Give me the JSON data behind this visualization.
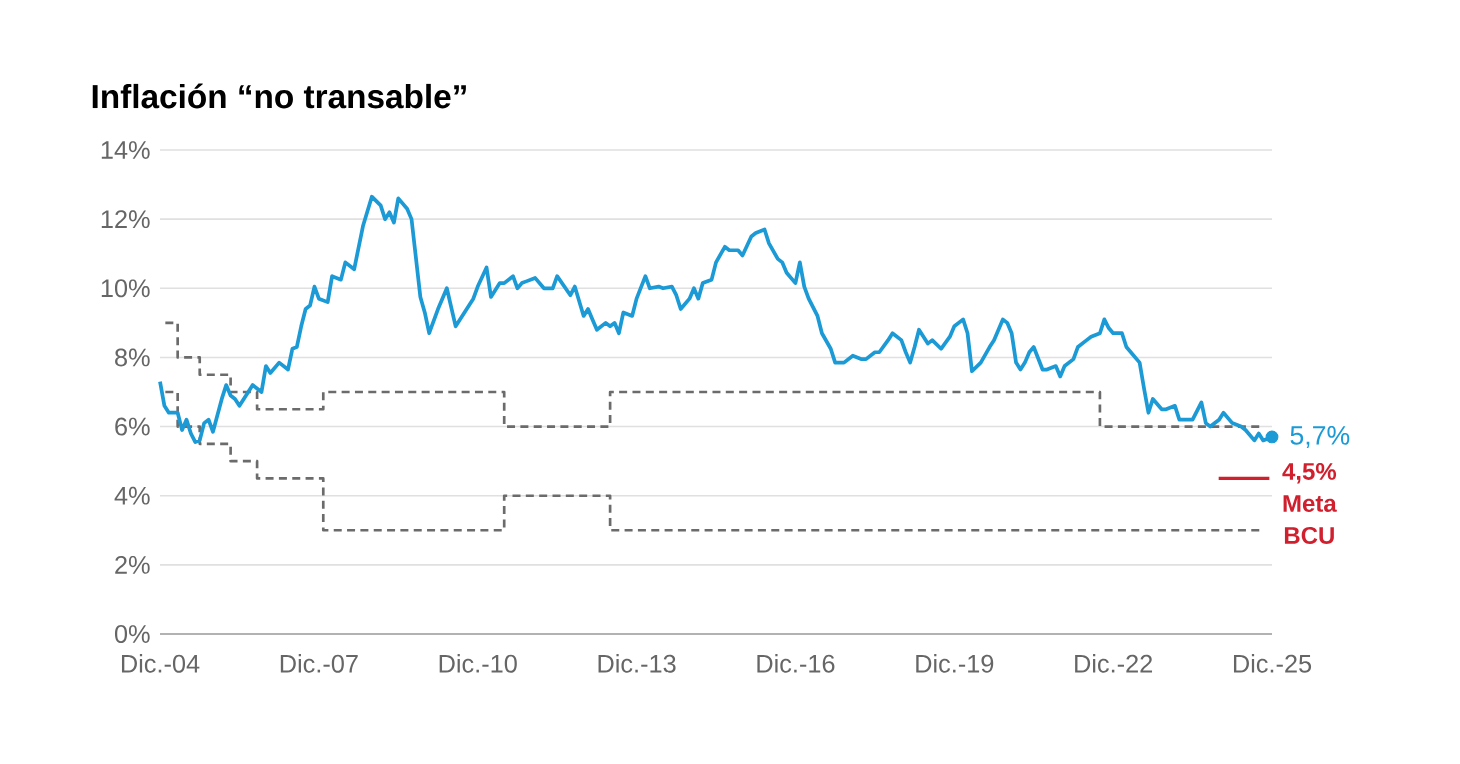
{
  "chart_data": {
    "type": "line",
    "title": "Inflación “no transable”",
    "xlim": [
      "2004-12",
      "2025-12"
    ],
    "xticks": [
      {
        "value": "2004-12",
        "label": "Dic.-04"
      },
      {
        "value": "2007-12",
        "label": "Dic.-07"
      },
      {
        "value": "2010-12",
        "label": "Dic.-10"
      },
      {
        "value": "2013-12",
        "label": "Dic.-13"
      },
      {
        "value": "2016-12",
        "label": "Dic.-16"
      },
      {
        "value": "2019-12",
        "label": "Dic.-19"
      },
      {
        "value": "2022-12",
        "label": "Dic.-22"
      },
      {
        "value": "2025-12",
        "label": "Dic.-25"
      }
    ],
    "ylim": [
      0,
      14
    ],
    "yticks": [
      {
        "value": 0,
        "label": "0%"
      },
      {
        "value": 2,
        "label": "2%"
      },
      {
        "value": 4,
        "label": "4%"
      },
      {
        "value": 6,
        "label": "6%"
      },
      {
        "value": 8,
        "label": "8%"
      },
      {
        "value": 10,
        "label": "10%"
      },
      {
        "value": 12,
        "label": "12%"
      },
      {
        "value": 14,
        "label": "14%"
      }
    ],
    "grid": "y",
    "series": [
      {
        "color": "#1b9ad6",
        "x": [
          "2004-12",
          "2005-01",
          "2005-02",
          "2005-04",
          "2005-05",
          "2005-06",
          "2005-07",
          "2005-08",
          "2005-09",
          "2005-10",
          "2005-11",
          "2005-12",
          "2006-02",
          "2006-03",
          "2006-04",
          "2006-05",
          "2006-06",
          "2006-08",
          "2006-09",
          "2006-11",
          "2006-12",
          "2007-01",
          "2007-03",
          "2007-05",
          "2007-06",
          "2007-07",
          "2007-08",
          "2007-09",
          "2007-10",
          "2007-11",
          "2007-12",
          "2008-02",
          "2008-03",
          "2008-05",
          "2008-06",
          "2008-08",
          "2008-10",
          "2008-12",
          "2009-02",
          "2009-03",
          "2009-04",
          "2009-05",
          "2009-06",
          "2009-08",
          "2009-09",
          "2009-11",
          "2009-12",
          "2010-01",
          "2010-03",
          "2010-05",
          "2010-07",
          "2010-09",
          "2010-11",
          "2010-12",
          "2011-02",
          "2011-03",
          "2011-05",
          "2011-06",
          "2011-08",
          "2011-09",
          "2011-10",
          "2011-11",
          "2012-01",
          "2012-03",
          "2012-05",
          "2012-06",
          "2012-09",
          "2012-10",
          "2012-12",
          "2013-01",
          "2013-02",
          "2013-03",
          "2013-05",
          "2013-06",
          "2013-07",
          "2013-08",
          "2013-09",
          "2013-11",
          "2013-12",
          "2014-02",
          "2014-03",
          "2014-05",
          "2014-06",
          "2014-08",
          "2014-09",
          "2014-10",
          "2014-12",
          "2015-01",
          "2015-02",
          "2015-03",
          "2015-05",
          "2015-06",
          "2015-08",
          "2015-09",
          "2015-11",
          "2015-12",
          "2016-02",
          "2016-03",
          "2016-05",
          "2016-06",
          "2016-08",
          "2016-09",
          "2016-10",
          "2016-12",
          "2017-01",
          "2017-02",
          "2017-03",
          "2017-05",
          "2017-06",
          "2017-08",
          "2017-09",
          "2017-11",
          "2018-01",
          "2018-03",
          "2018-04",
          "2018-06",
          "2018-07",
          "2018-09",
          "2018-10",
          "2018-12",
          "2019-01",
          "2019-02",
          "2019-03",
          "2019-04",
          "2019-06",
          "2019-07",
          "2019-09",
          "2019-11",
          "2019-12",
          "2020-02",
          "2020-03",
          "2020-04",
          "2020-06",
          "2020-08",
          "2020-09",
          "2020-11",
          "2020-12",
          "2021-01",
          "2021-02",
          "2021-03",
          "2021-04",
          "2021-05",
          "2021-06",
          "2021-08",
          "2021-09",
          "2021-11",
          "2021-12",
          "2022-01",
          "2022-03",
          "2022-04",
          "2022-06",
          "2022-07",
          "2022-09",
          "2022-10",
          "2022-11",
          "2022-12",
          "2023-02",
          "2023-03",
          "2023-06",
          "2023-07",
          "2023-08",
          "2023-09",
          "2023-11",
          "2023-12",
          "2024-02",
          "2024-03",
          "2024-05",
          "2024-06",
          "2024-08",
          "2024-09",
          "2024-10",
          "2024-12",
          "2025-01",
          "2025-03",
          "2025-05",
          "2025-06",
          "2025-08",
          "2025-09",
          "2025-10",
          "2025-12"
        ],
        "values": [
          7.3,
          6.6,
          6.4,
          6.4,
          5.9,
          6.2,
          5.8,
          5.55,
          5.6,
          6.1,
          6.2,
          5.85,
          6.8,
          7.2,
          6.9,
          6.8,
          6.6,
          7.0,
          7.2,
          7.0,
          7.75,
          7.55,
          7.85,
          7.65,
          8.25,
          8.3,
          8.9,
          9.4,
          9.5,
          10.05,
          9.7,
          9.6,
          10.35,
          10.25,
          10.75,
          10.55,
          11.8,
          12.65,
          12.4,
          12.0,
          12.2,
          11.9,
          12.6,
          12.3,
          12.0,
          9.75,
          9.3,
          8.7,
          9.4,
          10.0,
          8.9,
          9.3,
          9.7,
          10.05,
          10.6,
          9.75,
          10.15,
          10.15,
          10.35,
          10.0,
          10.15,
          10.2,
          10.3,
          10.0,
          10.0,
          10.35,
          9.8,
          10.05,
          9.2,
          9.4,
          9.1,
          8.8,
          9.0,
          8.9,
          9.0,
          8.7,
          9.3,
          9.2,
          9.7,
          10.35,
          10.0,
          10.05,
          10.0,
          10.05,
          9.8,
          9.4,
          9.7,
          10.0,
          9.7,
          10.15,
          10.25,
          10.75,
          11.2,
          11.1,
          11.1,
          10.95,
          11.5,
          11.6,
          11.7,
          11.3,
          10.85,
          10.75,
          10.45,
          10.15,
          10.75,
          10.05,
          9.7,
          9.2,
          8.7,
          8.25,
          7.85,
          7.85,
          8.05,
          7.95,
          7.95,
          8.15,
          8.15,
          8.5,
          8.7,
          8.5,
          8.15,
          7.85,
          8.3,
          8.8,
          8.4,
          8.5,
          8.25,
          8.6,
          8.9,
          9.1,
          8.7,
          7.6,
          7.85,
          8.3,
          8.5,
          9.1,
          9.0,
          8.7,
          7.85,
          7.65,
          7.85,
          8.15,
          8.3,
          7.65,
          7.65,
          7.75,
          7.45,
          7.75,
          7.95,
          8.3,
          8.5,
          8.6,
          8.7,
          9.1,
          8.85,
          8.7,
          8.7,
          8.3,
          7.85,
          7.1,
          6.4,
          6.8,
          6.5,
          6.5,
          6.6,
          6.2,
          6.2,
          6.2,
          6.7,
          6.1,
          6.0,
          6.2,
          6.4,
          6.1,
          6.0,
          5.9,
          5.6,
          5.8,
          5.6,
          5.7
        ]
      },
      {
        "type": "step",
        "color": "#6b6b6b",
        "line_style": "dashed",
        "x": [
          "2004-12",
          "2005-04",
          "2005-09",
          "2006-04",
          "2006-10",
          "2008-01",
          "2011-06",
          "2013-06",
          "2022-09",
          "2025-10"
        ],
        "values": [
          9,
          8,
          7.5,
          7,
          6.5,
          7,
          6,
          7,
          6,
          6
        ]
      },
      {
        "type": "step",
        "color": "#6b6b6b",
        "line_style": "dashed",
        "x": [
          "2004-12",
          "2005-04",
          "2005-09",
          "2006-04",
          "2006-10",
          "2008-01",
          "2011-06",
          "2013-06",
          "2022-09",
          "2025-10"
        ],
        "values": [
          7,
          6,
          5.5,
          5,
          4.5,
          3,
          4,
          3,
          3,
          3
        ]
      },
      {
        "type": "scatter",
        "color": "#1b9ad6",
        "marker": "circle",
        "x": [
          "2025-12"
        ],
        "values": [
          5.7
        ]
      }
    ],
    "annotations": [
      {
        "text": "5,7%",
        "x": "2025-12",
        "y": 5.7
      }
    ],
    "ref_lines": [
      {
        "axis": "y",
        "value": 4.5,
        "label": "4,5% Meta BCU",
        "color": "#d0202e"
      }
    ]
  }
}
